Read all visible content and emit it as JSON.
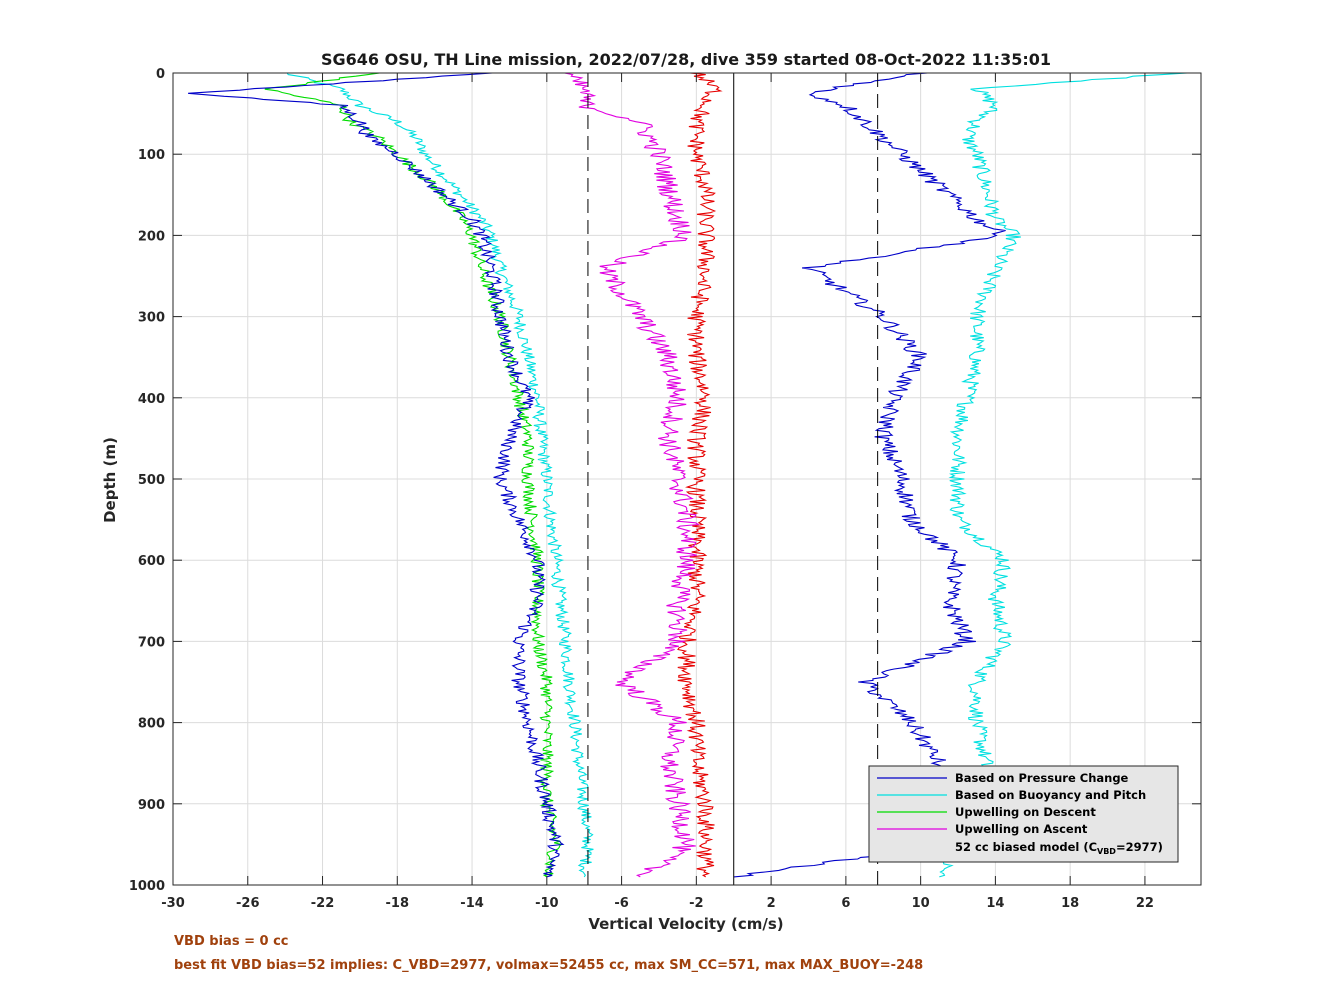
{
  "chart_data": {
    "type": "line",
    "title": "SG646 OSU, TH Line mission, 2022/07/28, dive 359 started 08-Oct-2022 11:35:01",
    "xlabel": "Vertical Velocity (cm/s)",
    "ylabel": "Depth (m)",
    "xlim": [
      -30,
      25
    ],
    "ylim": [
      0,
      1000
    ],
    "y_reversed": true,
    "grid": true,
    "xticks": [
      -30,
      -26,
      -22,
      -18,
      -14,
      -10,
      -6,
      -2,
      2,
      6,
      10,
      14,
      18,
      22
    ],
    "yticks": [
      0,
      100,
      200,
      300,
      400,
      500,
      600,
      700,
      800,
      900,
      1000
    ],
    "legend_position": "bottom-right",
    "series": [
      {
        "name": "Based on Pressure Change",
        "color": "#0000c8",
        "depth": [
          0,
          25,
          40,
          60,
          80,
          100,
          140,
          180,
          200,
          240,
          300,
          350,
          400,
          450,
          500,
          550,
          600,
          650,
          700,
          750,
          800,
          850,
          900,
          950,
          990
        ],
        "descent": [
          -13,
          -29,
          -21,
          -20,
          -19.5,
          -18,
          -16,
          -14,
          -13.5,
          -13,
          -12.5,
          -12,
          -11,
          -12,
          -12.5,
          -11.5,
          -10.5,
          -10.5,
          -11.5,
          -11.5,
          -11,
          -10.5,
          -10,
          -9.5,
          -10
        ],
        "ascent": [
          10,
          4,
          6,
          7,
          8,
          9,
          11,
          13,
          14.5,
          4,
          8,
          10,
          8.5,
          8,
          9,
          9.5,
          12,
          11.5,
          12.5,
          7,
          9.5,
          11,
          8.5,
          11.5,
          0
        ]
      },
      {
        "name": "Based on Buoyancy and Pitch",
        "color": "#00e0e0",
        "depth": [
          0,
          20,
          40,
          60,
          80,
          100,
          140,
          180,
          200,
          240,
          300,
          350,
          400,
          450,
          500,
          550,
          600,
          650,
          700,
          750,
          800,
          850,
          900,
          950,
          990
        ],
        "descent": [
          -24,
          -21,
          -20,
          -18,
          -17,
          -16.5,
          -15,
          -13.5,
          -13,
          -12.5,
          -11.5,
          -11,
          -10.5,
          -10.3,
          -10,
          -9.8,
          -9.5,
          -9.3,
          -9,
          -8.8,
          -8.5,
          -8.3,
          -8,
          -7.8,
          -8
        ],
        "ascent": [
          24,
          13,
          14,
          13,
          12.5,
          13,
          13.5,
          14,
          15,
          14,
          13,
          13,
          12.5,
          12,
          12,
          12,
          14.5,
          14,
          14.5,
          13,
          13,
          13.5,
          12,
          12,
          11
        ]
      },
      {
        "name": "Upwelling on Descent",
        "color": "#00dc00",
        "depth": [
          0,
          20,
          40,
          60,
          80,
          100,
          140,
          180,
          200,
          240,
          300,
          350,
          400,
          450,
          500,
          550,
          600,
          650,
          700,
          750,
          800,
          850,
          900,
          950,
          990
        ],
        "values": [
          -19,
          -25,
          -21,
          -20.5,
          -19,
          -18,
          -16,
          -14.5,
          -14,
          -13.5,
          -12.5,
          -12,
          -11.5,
          -11,
          -11,
          -10.8,
          -10.5,
          -10.5,
          -10.5,
          -10,
          -10,
          -10,
          -10,
          -9.5,
          -10
        ]
      },
      {
        "name": "Upwelling on Ascent",
        "color": "#e000e0",
        "depth": [
          0,
          20,
          40,
          60,
          80,
          100,
          140,
          180,
          200,
          240,
          300,
          350,
          400,
          450,
          500,
          550,
          600,
          650,
          700,
          750,
          800,
          850,
          900,
          950,
          990
        ],
        "values": [
          -9,
          -8,
          -8,
          -5,
          -4.5,
          -4,
          -3.5,
          -3,
          -2.5,
          -7,
          -5,
          -3.5,
          -3,
          -3.5,
          -3,
          -2.5,
          -2.5,
          -3,
          -3,
          -6,
          -3,
          -3.5,
          -3,
          -2.5,
          -5
        ]
      }
    ],
    "extra_series": [
      {
        "role": "upwelling on descent (red trace)",
        "color": "#e60000",
        "depth": [
          0,
          20,
          40,
          60,
          80,
          100,
          140,
          180,
          200,
          240,
          300,
          350,
          400,
          450,
          500,
          550,
          600,
          650,
          700,
          750,
          800,
          850,
          900,
          950,
          990
        ],
        "values": [
          -2,
          -1,
          -1.5,
          -2,
          -2,
          -2,
          -1.5,
          -1.5,
          -1.5,
          -1.5,
          -2,
          -2,
          -1.5,
          -2,
          -2,
          -2,
          -2,
          -2,
          -2.5,
          -2.5,
          -2,
          -2,
          -1.5,
          -1.5,
          -1.5
        ]
      }
    ],
    "reference_lines": [
      {
        "x": -7.8,
        "style": "dashed",
        "color": "#000000"
      },
      {
        "x": 7.7,
        "style": "dashed",
        "color": "#000000"
      },
      {
        "x": 0,
        "style": "solid",
        "color": "#000000"
      }
    ],
    "legend": {
      "entries": [
        {
          "label": "Based on Pressure Change",
          "color": "#0000c8"
        },
        {
          "label": "Based on Buoyancy and Pitch",
          "color": "#00e0e0"
        },
        {
          "label": "Upwelling on Descent",
          "color": "#00dc00"
        },
        {
          "label": "Upwelling on Ascent",
          "color": "#e000e0"
        }
      ],
      "model_entry": {
        "prefix": "52 cc biased model (C",
        "sub": "VBD",
        "suffix": "=2977)"
      }
    }
  },
  "footnotes": {
    "line1": "VBD bias = 0 cc",
    "line2": "best fit VBD bias=52 implies: C_VBD=2977, volmax=52455 cc, max SM_CC=571, max MAX_BUOY=-248"
  }
}
